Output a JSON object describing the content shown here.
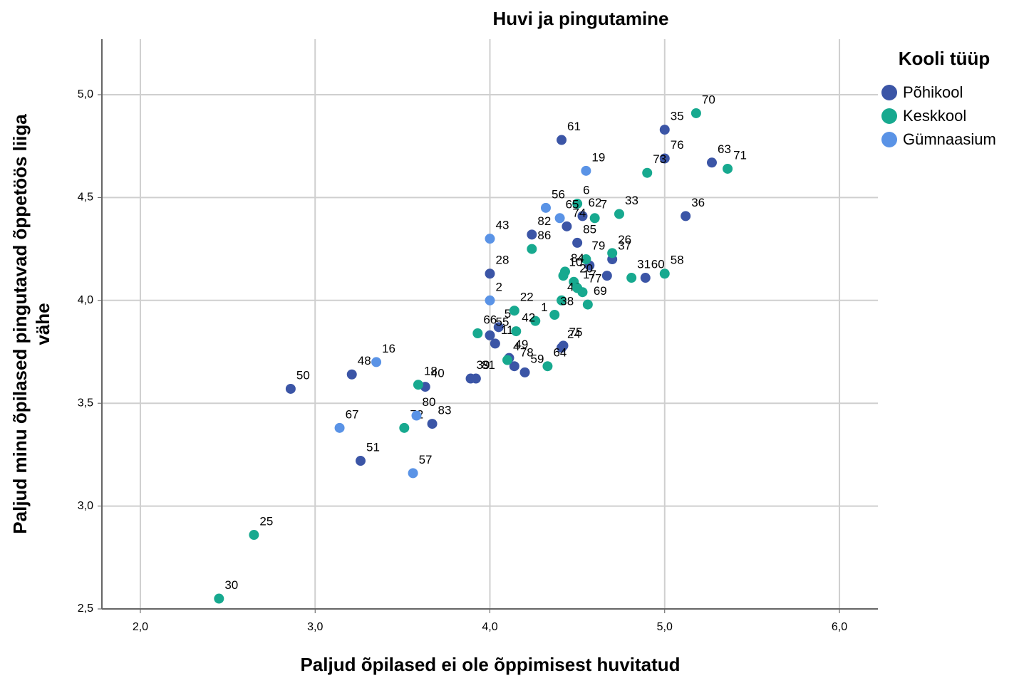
{
  "chart_data": {
    "type": "scatter",
    "title": "Huvi ja pingutamine",
    "xlabel": "Paljud õpilased ei ole õppimisest huvitatud",
    "ylabel": [
      "Paljud minu õpilased pingutavad õppetöös liiga",
      "vähe"
    ],
    "legend_title": "Kooli tüüp",
    "xlim": [
      1.78,
      6.22
    ],
    "ylim": [
      2.5,
      5.27
    ],
    "xticks": [
      {
        "value": 2,
        "label": "2,0"
      },
      {
        "value": 3,
        "label": "3,0"
      },
      {
        "value": 4,
        "label": "4,0"
      },
      {
        "value": 5,
        "label": "5,0"
      },
      {
        "value": 6,
        "label": "6,0"
      }
    ],
    "yticks": [
      {
        "value": 2.5,
        "label": "2,5"
      },
      {
        "value": 3,
        "label": "3,0"
      },
      {
        "value": 3.5,
        "label": "3,5"
      },
      {
        "value": 4,
        "label": "4,0"
      },
      {
        "value": 4.5,
        "label": "4,5"
      },
      {
        "value": 5,
        "label": "5,0"
      }
    ],
    "grid": true,
    "series": [
      {
        "name": "Põhikool",
        "color": "#3b55a6",
        "x": [
          4.41,
          5.0,
          5.0,
          5.27,
          5.12,
          4.53,
          4.24,
          4.44,
          4.5,
          4.7,
          4.57,
          4.67,
          4.89,
          4.0,
          4.05,
          4.41,
          4.42,
          4.0,
          4.03,
          4.14,
          4.2,
          3.89,
          3.92,
          4.11,
          3.63,
          2.86,
          3.21,
          3.67,
          3.26
        ],
        "values": [
          4.78,
          4.83,
          4.69,
          4.67,
          4.41,
          4.41,
          4.32,
          4.36,
          4.28,
          4.2,
          4.17,
          4.12,
          4.11,
          4.13,
          3.87,
          3.77,
          3.78,
          3.83,
          3.79,
          3.68,
          3.65,
          3.62,
          3.62,
          3.72,
          3.58,
          3.57,
          3.64,
          3.4,
          3.22
        ],
        "labels": [
          61,
          35,
          76,
          63,
          36,
          62,
          82,
          74,
          85,
          37,
          null,
          null,
          60,
          28,
          5,
          24,
          75,
          55,
          11,
          78,
          59,
          39,
          81,
          49,
          40,
          50,
          48,
          83,
          51
        ]
      },
      {
        "name": "Keskkool",
        "color": "#17a98f",
        "x": [
          5.18,
          5.36,
          4.9,
          4.5,
          4.6,
          4.74,
          4.24,
          4.7,
          4.55,
          4.43,
          4.42,
          4.48,
          4.81,
          5.0,
          4.41,
          4.5,
          4.53,
          4.56,
          4.14,
          4.37,
          4.26,
          4.15,
          3.93,
          4.1,
          4.33,
          3.59,
          3.51,
          2.65,
          2.45
        ],
        "values": [
          4.91,
          4.64,
          4.62,
          4.47,
          4.4,
          4.42,
          4.25,
          4.23,
          4.2,
          4.14,
          4.12,
          4.09,
          4.11,
          4.13,
          4.0,
          4.06,
          4.04,
          3.98,
          3.95,
          3.93,
          3.9,
          3.85,
          3.84,
          3.71,
          3.68,
          3.59,
          3.38,
          2.86,
          2.55
        ],
        "labels": [
          70,
          71,
          73,
          6,
          7,
          33,
          86,
          26,
          79,
          84,
          10,
          20,
          31,
          58,
          46,
          17,
          77,
          69,
          22,
          38,
          1,
          42,
          66,
          4,
          64,
          18,
          72,
          25,
          30
        ]
      },
      {
        "name": "Gümnaasium",
        "color": "#5a93e6",
        "x": [
          4.55,
          4.32,
          4.4,
          4.0,
          4.0,
          3.35,
          3.58,
          3.14,
          3.56
        ],
        "values": [
          4.63,
          4.45,
          4.4,
          4.3,
          4.0,
          3.7,
          3.44,
          3.38,
          3.16
        ],
        "labels": [
          19,
          56,
          65,
          43,
          2,
          16,
          80,
          67,
          57
        ]
      }
    ]
  }
}
